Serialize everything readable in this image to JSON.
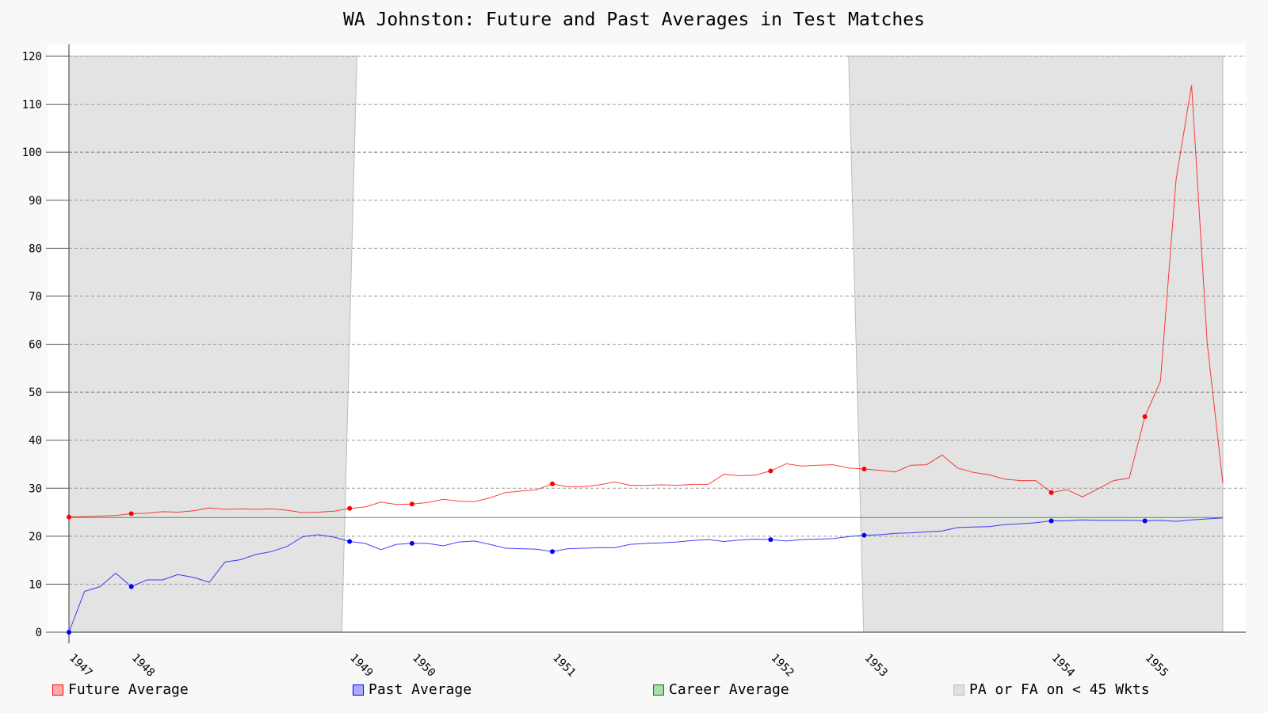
{
  "chart_data": {
    "type": "line",
    "title": "WA Johnston: Future and Past Averages in Test Matches",
    "xlabel": "",
    "ylabel": "",
    "ylim": [
      0,
      120
    ],
    "yticks": [
      0,
      10,
      20,
      30,
      40,
      50,
      60,
      70,
      80,
      90,
      100,
      110,
      120
    ],
    "grid": true,
    "legend_position": "bottom",
    "match_count": 75,
    "year_labels": [
      {
        "label": "1947",
        "match": 0
      },
      {
        "label": "1948",
        "match": 4
      },
      {
        "label": "1949",
        "match": 18
      },
      {
        "label": "1950",
        "match": 22
      },
      {
        "label": "1951",
        "match": 31
      },
      {
        "label": "1952",
        "match": 45
      },
      {
        "label": "1953",
        "match": 51
      },
      {
        "label": "1954",
        "match": 63
      },
      {
        "label": "1955",
        "match": 69
      }
    ],
    "shaded_regions": [
      {
        "from_match": 0,
        "to_match": 17.5,
        "label": "PA or FA on < 45 Wkts"
      },
      {
        "from_match": 50,
        "to_match": 74,
        "label": "PA or FA on < 45 Wkts"
      }
    ],
    "series": [
      {
        "name": "Future Average",
        "color": "#ff0000",
        "values": [
          24.0,
          24.1,
          24.2,
          24.3,
          24.7,
          24.8,
          25.1,
          25.0,
          25.3,
          25.9,
          25.6,
          25.7,
          25.6,
          25.7,
          25.4,
          24.9,
          25.0,
          25.2,
          25.8,
          26.1,
          27.1,
          26.6,
          26.7,
          27.0,
          27.7,
          27.3,
          27.2,
          28.0,
          29.1,
          29.4,
          29.7,
          30.9,
          30.3,
          30.3,
          30.7,
          31.3,
          30.6,
          30.6,
          30.7,
          30.6,
          30.8,
          30.8,
          32.9,
          32.6,
          32.7,
          33.6,
          35.1,
          34.6,
          34.8,
          34.9,
          34.2,
          34.0,
          33.7,
          33.4,
          34.8,
          34.9,
          36.9,
          34.2,
          33.3,
          32.8,
          31.9,
          31.6,
          31.6,
          29.1,
          29.7,
          28.2,
          29.9,
          31.6,
          32.1,
          44.9,
          52.3,
          94.3,
          114.0,
          60.2,
          31.1
        ],
        "markers": [
          0,
          4,
          18,
          22,
          31,
          45,
          51,
          63,
          69
        ]
      },
      {
        "name": "Past Average",
        "color": "#0000ff",
        "values": [
          0.0,
          8.5,
          9.5,
          12.3,
          9.5,
          10.9,
          10.9,
          12.0,
          11.4,
          10.4,
          14.6,
          15.1,
          16.2,
          16.8,
          17.9,
          19.9,
          20.3,
          19.8,
          18.9,
          18.5,
          17.2,
          18.3,
          18.5,
          18.5,
          18.0,
          18.8,
          19.0,
          18.3,
          17.5,
          17.4,
          17.3,
          16.8,
          17.4,
          17.5,
          17.6,
          17.6,
          18.3,
          18.5,
          18.6,
          18.8,
          19.1,
          19.3,
          18.9,
          19.2,
          19.4,
          19.3,
          19.0,
          19.3,
          19.4,
          19.5,
          19.9,
          20.2,
          20.3,
          20.6,
          20.7,
          20.9,
          21.1,
          21.8,
          21.9,
          22.0,
          22.4,
          22.6,
          22.8,
          23.2,
          23.2,
          23.4,
          23.3,
          23.3,
          23.3,
          23.2,
          23.3,
          23.1,
          23.4,
          23.6,
          23.8
        ],
        "markers": [
          0,
          4,
          18,
          22,
          31,
          45,
          51,
          63,
          69
        ]
      },
      {
        "name": "Career Average",
        "color": "#008000",
        "value": 23.9
      }
    ],
    "legend": [
      {
        "label": "Future Average",
        "fill": "#ffaaaa",
        "stroke": "#ff0000"
      },
      {
        "label": "Past Average",
        "fill": "#aaaaff",
        "stroke": "#0000ff"
      },
      {
        "label": "Career Average",
        "fill": "#aaddaa",
        "stroke": "#008000"
      },
      {
        "label": "PA or FA on < 45 Wkts",
        "fill": "#e0e0e0",
        "stroke": "#bbbbbb"
      }
    ]
  }
}
